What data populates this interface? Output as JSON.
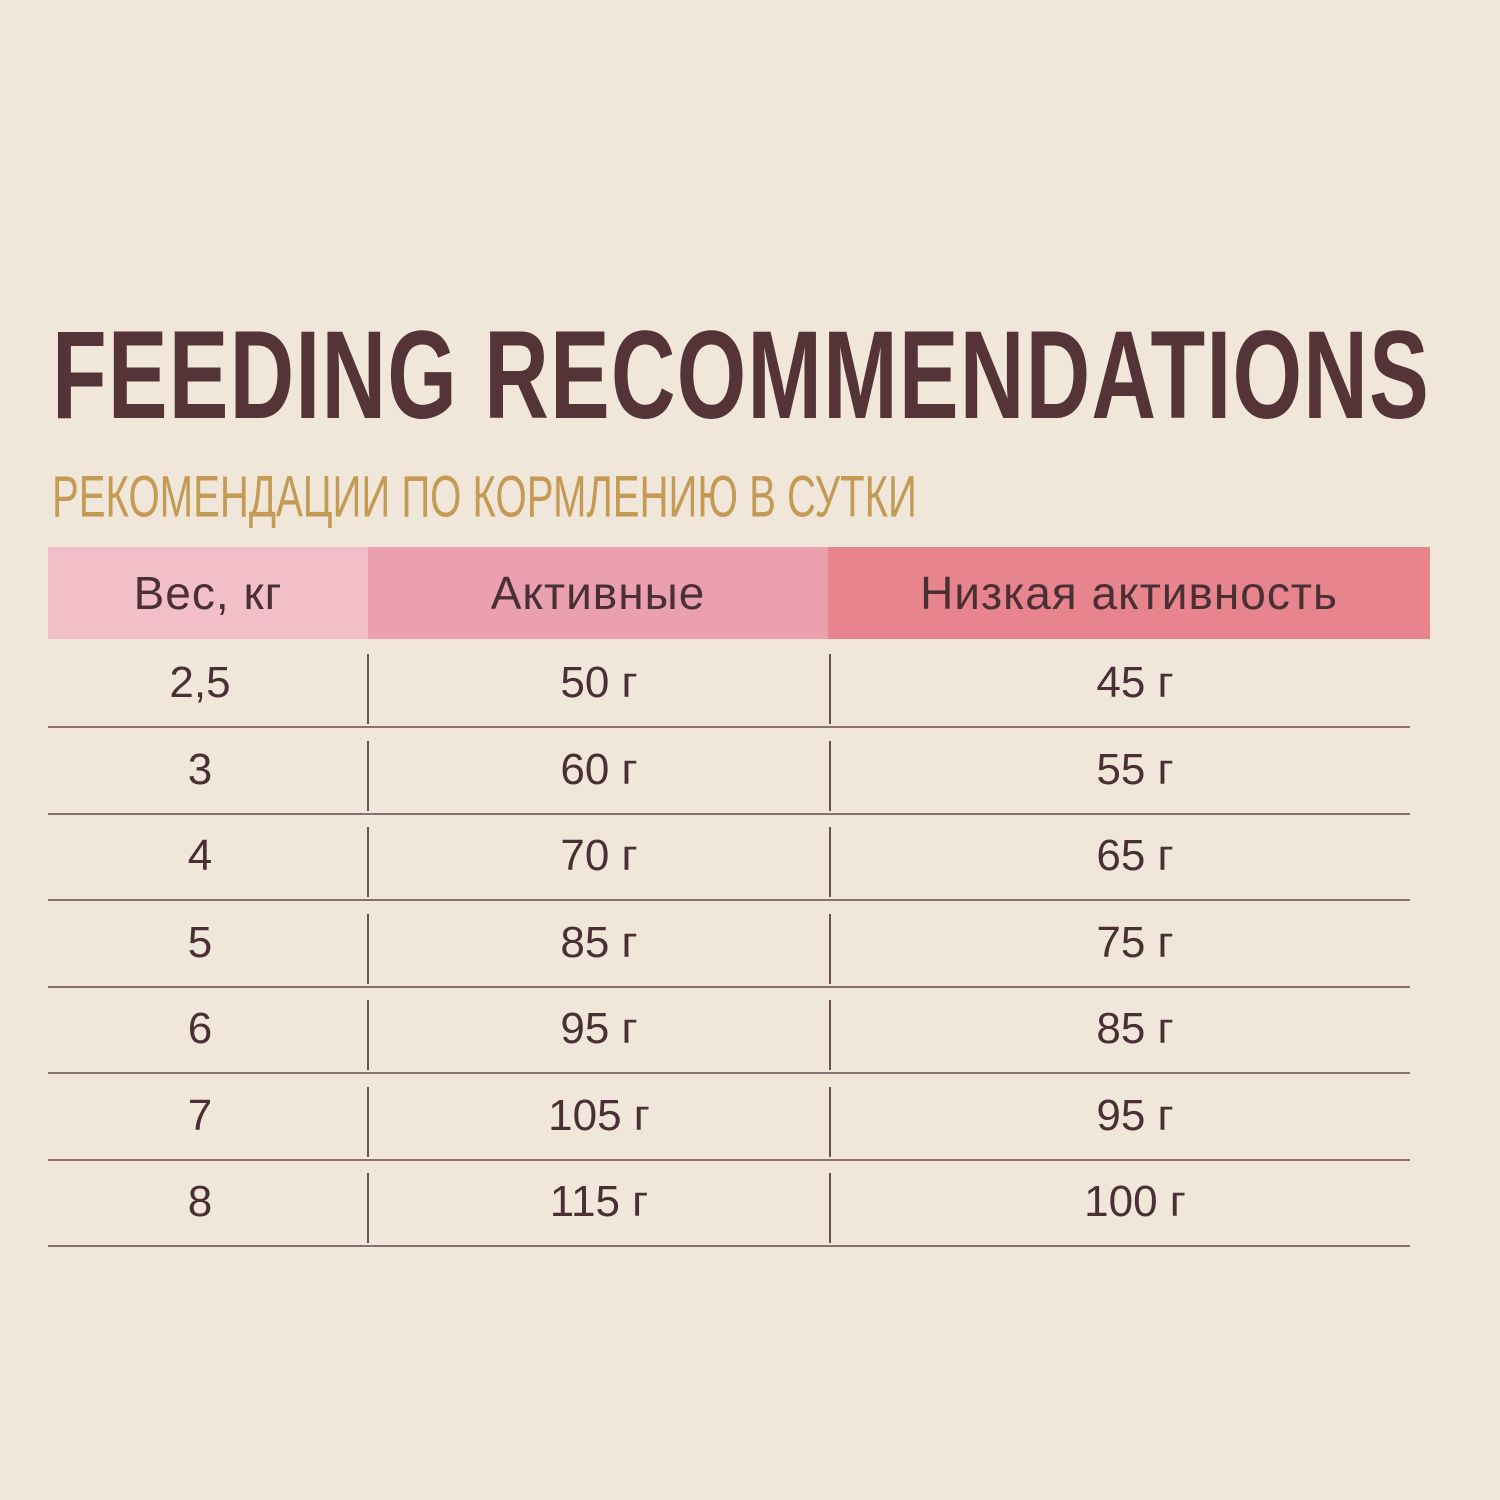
{
  "title": "FEEDING RECOMMENDATIONS",
  "subtitle": "РЕКОМЕНДАЦИИ ПО КОРМЛЕНИЮ В СУТКИ",
  "colors": {
    "header_weight": "#f2bfc8",
    "header_active": "#eba0b0",
    "header_low": "#e8848e",
    "subtitle": "#c39b55",
    "title": "#553437"
  },
  "table": {
    "headers": [
      "Вес, кг",
      "Активные",
      "Низкая активность"
    ],
    "rows": [
      [
        "2,5",
        "50 г",
        "45 г"
      ],
      [
        "3",
        "60 г",
        "55 г"
      ],
      [
        "4",
        "70 г",
        "65 г"
      ],
      [
        "5",
        "85 г",
        "75 г"
      ],
      [
        "6",
        "95 г",
        "85 г"
      ],
      [
        "7",
        "105 г",
        "95 г"
      ],
      [
        "8",
        "115 г",
        "100 г"
      ]
    ]
  }
}
